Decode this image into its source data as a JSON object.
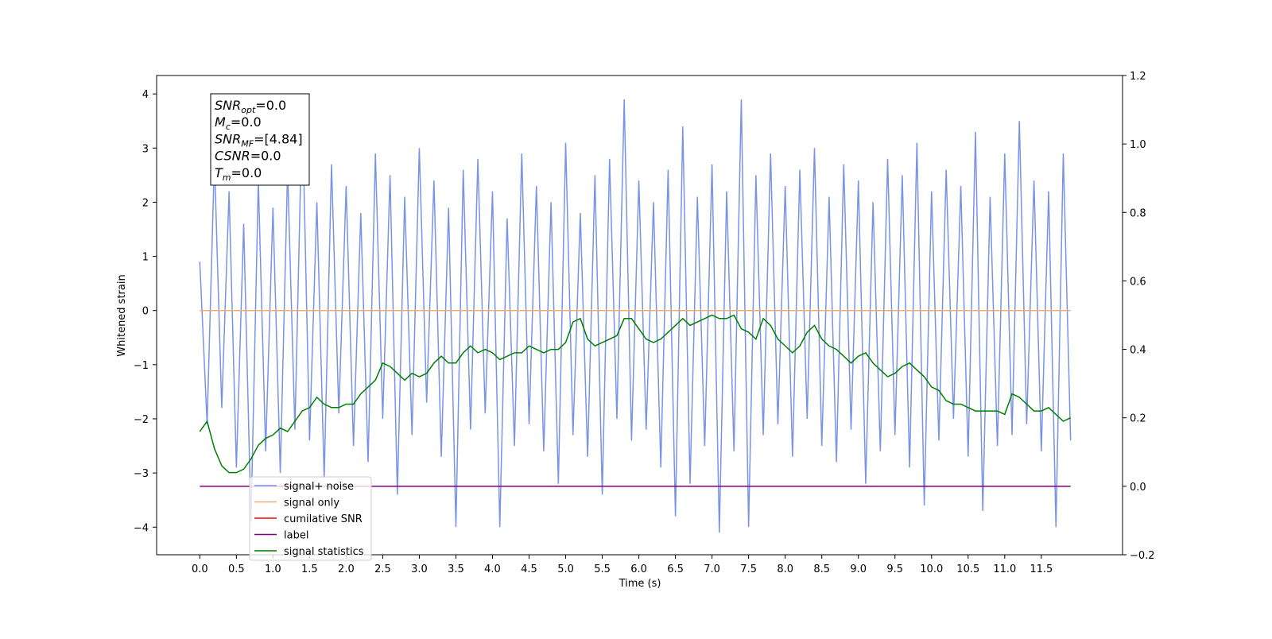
{
  "chart_data": {
    "type": "line",
    "xlabel": "Time (s)",
    "ylabel": "Whitened strain",
    "xlim": [
      -0.59,
      12.61
    ],
    "xticks": [
      {
        "value": 0,
        "label": "0.0"
      },
      0.5,
      {
        "value": 1,
        "label": "1.0"
      },
      1.5,
      {
        "value": 2,
        "label": "2.0"
      },
      2.5,
      {
        "value": 3,
        "label": "3.0"
      },
      3.5,
      {
        "value": 4,
        "label": "4.0"
      },
      4.5,
      {
        "value": 5,
        "label": "5.0"
      },
      5.5,
      {
        "value": 6,
        "label": "6.0"
      },
      6.5,
      {
        "value": 7,
        "label": "7.0"
      },
      7.5,
      {
        "value": 8,
        "label": "8.0"
      },
      8.5,
      {
        "value": 9,
        "label": "9.0"
      },
      9.5,
      {
        "value": 10,
        "label": "10.0"
      },
      10.5,
      {
        "value": 11,
        "label": "11.0"
      },
      11.5
    ],
    "ylim": [
      -4.51,
      4.34
    ],
    "yticks": [
      {
        "value": -4,
        "label": "−4"
      },
      {
        "value": -3,
        "label": "−3"
      },
      {
        "value": -2,
        "label": "−2"
      },
      {
        "value": -1,
        "label": "−1"
      },
      0,
      1,
      2,
      3,
      4
    ],
    "y2lim": [
      -0.2,
      1.2
    ],
    "y2ticks": [
      {
        "value": -0.2,
        "label": "−0.2"
      },
      {
        "value": 0,
        "label": "0.0"
      },
      0.2,
      0.4,
      0.6,
      0.8,
      {
        "value": 1,
        "label": "1.0"
      },
      1.2
    ],
    "legend": "lower left",
    "annotation": [
      {
        "name": "SNR",
        "sub": "opt",
        "text": "=0.0"
      },
      {
        "name": "M",
        "sub": "c",
        "text": "=0.0"
      },
      {
        "name": "SNR",
        "sub": "MF",
        "text": "=[4.84]"
      },
      {
        "name": "CSNR",
        "text": "=0.0"
      },
      {
        "name": "T",
        "sub": "m",
        "text": "=0.0"
      }
    ],
    "x": [
      0,
      0.1,
      0.2,
      0.3,
      0.4,
      0.5,
      0.6,
      0.7,
      0.8,
      0.9,
      1,
      1.1,
      1.2,
      1.3,
      1.4,
      1.5,
      1.6,
      1.7,
      1.8,
      1.9,
      2,
      2.1,
      2.2,
      2.3,
      2.4,
      2.5,
      2.6,
      2.7,
      2.8,
      2.9,
      3,
      3.1,
      3.2,
      3.3,
      3.4,
      3.5,
      3.6,
      3.7,
      3.8,
      3.9,
      4,
      4.1,
      4.2,
      4.3,
      4.4,
      4.5,
      4.6,
      4.7,
      4.8,
      4.9,
      5,
      5.1,
      5.2,
      5.3,
      5.4,
      5.5,
      5.6,
      5.7,
      5.8,
      5.9,
      6,
      6.1,
      6.2,
      6.3,
      6.4,
      6.5,
      6.6,
      6.7,
      6.8,
      6.9,
      7,
      7.1,
      7.2,
      7.3,
      7.4,
      7.5,
      7.6,
      7.7,
      7.8,
      7.9,
      8,
      8.1,
      8.2,
      8.3,
      8.4,
      8.5,
      8.6,
      8.7,
      8.8,
      8.9,
      9,
      9.1,
      9.2,
      9.3,
      9.4,
      9.5,
      9.6,
      9.7,
      9.8,
      9.9,
      10,
      10.1,
      10.2,
      10.3,
      10.4,
      10.5,
      10.6,
      10.7,
      10.8,
      10.9,
      11,
      11.1,
      11.2,
      11.3,
      11.4,
      11.5,
      11.6,
      11.7,
      11.8,
      11.9
    ],
    "series": [
      {
        "name": "signal+ noise",
        "color": "#7893e8",
        "values": [
          0.9,
          -2.1,
          2.8,
          -1.8,
          2.2,
          -2.9,
          1.6,
          -3.9,
          2.4,
          -2.6,
          1.9,
          -3.0,
          2.6,
          -2.2,
          3.8,
          -2.4,
          2.0,
          -3.1,
          2.7,
          -1.9,
          2.3,
          -2.5,
          1.8,
          -2.8,
          2.9,
          -2.0,
          2.5,
          -3.4,
          2.1,
          -2.3,
          3.0,
          -1.7,
          2.4,
          -2.7,
          1.9,
          -4.0,
          2.6,
          -2.2,
          2.8,
          -1.9,
          2.2,
          -4.0,
          1.7,
          -2.5,
          2.9,
          -2.1,
          2.3,
          -2.6,
          2.0,
          -3.2,
          3.1,
          -2.3,
          1.8,
          -2.7,
          2.5,
          -3.4,
          2.8,
          -2.0,
          3.9,
          -2.4,
          2.4,
          -2.2,
          2.0,
          -2.9,
          2.6,
          -3.8,
          3.4,
          -3.2,
          2.1,
          -2.5,
          2.7,
          -4.1,
          2.2,
          -2.6,
          3.9,
          -4.0,
          2.5,
          -2.3,
          2.9,
          -2.1,
          2.3,
          -2.7,
          2.6,
          -2.0,
          3.0,
          -2.5,
          2.1,
          -2.8,
          2.7,
          -2.2,
          2.4,
          -3.2,
          2.0,
          -2.6,
          2.8,
          -2.3,
          2.5,
          -2.9,
          3.1,
          -3.6,
          2.2,
          -2.4,
          2.6,
          -2.0,
          2.3,
          -2.7,
          3.3,
          -3.7,
          2.1,
          -2.5,
          2.9,
          -2.3,
          3.5,
          -2.1,
          2.4,
          -2.6,
          2.2,
          -4.0,
          2.9,
          -2.4
        ]
      },
      {
        "name": "signal only",
        "color": "#e8b070",
        "values": [
          0,
          0,
          0,
          0,
          0,
          0,
          0,
          0,
          0,
          0,
          0,
          0,
          0,
          0,
          0,
          0,
          0,
          0,
          0,
          0,
          0,
          0,
          0,
          0,
          0,
          0,
          0,
          0,
          0,
          0,
          0,
          0,
          0,
          0,
          0,
          0,
          0,
          0,
          0,
          0,
          0,
          0,
          0,
          0,
          0,
          0,
          0,
          0,
          0,
          0,
          0,
          0,
          0,
          0,
          0,
          0,
          0,
          0,
          0,
          0,
          0,
          0,
          0,
          0,
          0,
          0,
          0,
          0,
          0,
          0,
          0,
          0,
          0,
          0,
          0,
          0,
          0,
          0,
          0,
          0,
          0,
          0,
          0,
          0,
          0,
          0,
          0,
          0,
          0,
          0,
          0,
          0,
          0,
          0,
          0,
          0,
          0,
          0,
          0,
          0,
          0,
          0,
          0,
          0,
          0,
          0,
          0,
          0,
          0,
          0,
          0,
          0,
          0,
          0,
          0,
          0,
          0,
          0,
          0,
          0
        ]
      },
      {
        "name": "cumilative SNR",
        "color": "#ff0000"
      },
      {
        "name": "label",
        "color": "#800080",
        "axis": "y2",
        "values": [
          0,
          0,
          0,
          0,
          0,
          0,
          0,
          0,
          0,
          0,
          0,
          0,
          0,
          0,
          0,
          0,
          0,
          0,
          0,
          0,
          0,
          0,
          0,
          0,
          0,
          0,
          0,
          0,
          0,
          0,
          0,
          0,
          0,
          0,
          0,
          0,
          0,
          0,
          0,
          0,
          0,
          0,
          0,
          0,
          0,
          0,
          0,
          0,
          0,
          0,
          0,
          0,
          0,
          0,
          0,
          0,
          0,
          0,
          0,
          0,
          0,
          0,
          0,
          0,
          0,
          0,
          0,
          0,
          0,
          0,
          0,
          0,
          0,
          0,
          0,
          0,
          0,
          0,
          0,
          0,
          0,
          0,
          0,
          0,
          0,
          0,
          0,
          0,
          0,
          0,
          0,
          0,
          0,
          0,
          0,
          0,
          0,
          0,
          0,
          0,
          0,
          0,
          0,
          0,
          0,
          0,
          0,
          0,
          0,
          0,
          0,
          0,
          0,
          0,
          0,
          0,
          0,
          0,
          0,
          0
        ]
      },
      {
        "name": "signal statistics",
        "color": "#007f00",
        "axis": "y2",
        "values": [
          0.16,
          0.19,
          0.11,
          0.06,
          0.04,
          0.04,
          0.05,
          0.08,
          0.12,
          0.14,
          0.15,
          0.17,
          0.16,
          0.19,
          0.22,
          0.23,
          0.26,
          0.24,
          0.23,
          0.23,
          0.24,
          0.24,
          0.27,
          0.29,
          0.31,
          0.36,
          0.35,
          0.33,
          0.31,
          0.33,
          0.32,
          0.33,
          0.36,
          0.38,
          0.36,
          0.36,
          0.39,
          0.41,
          0.39,
          0.4,
          0.39,
          0.37,
          0.38,
          0.39,
          0.39,
          0.41,
          0.4,
          0.39,
          0.4,
          0.4,
          0.42,
          0.48,
          0.49,
          0.43,
          0.41,
          0.42,
          0.43,
          0.44,
          0.49,
          0.49,
          0.46,
          0.43,
          0.42,
          0.43,
          0.45,
          0.47,
          0.49,
          0.47,
          0.48,
          0.49,
          0.5,
          0.49,
          0.49,
          0.5,
          0.46,
          0.45,
          0.43,
          0.49,
          0.47,
          0.43,
          0.41,
          0.39,
          0.41,
          0.45,
          0.47,
          0.43,
          0.41,
          0.4,
          0.38,
          0.36,
          0.38,
          0.39,
          0.36,
          0.34,
          0.32,
          0.33,
          0.35,
          0.36,
          0.34,
          0.32,
          0.29,
          0.28,
          0.25,
          0.24,
          0.24,
          0.23,
          0.22,
          0.22,
          0.22,
          0.22,
          0.21,
          0.27,
          0.26,
          0.24,
          0.22,
          0.22,
          0.23,
          0.21,
          0.19,
          0.2
        ]
      }
    ]
  }
}
